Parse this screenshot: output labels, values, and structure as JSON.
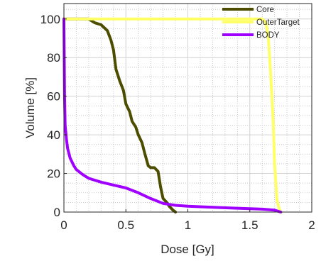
{
  "chart_data": {
    "type": "line",
    "title": "",
    "xlabel": "Dose [Gy]",
    "ylabel": "Volume [%]",
    "xlim": [
      0,
      2.0
    ],
    "ylim": [
      0,
      108
    ],
    "x_ticks": [
      0,
      0.5,
      1,
      1.5,
      2
    ],
    "x_tick_labels": [
      "0",
      "0.5",
      "1",
      "1.5",
      "2"
    ],
    "y_ticks": [
      0,
      20,
      40,
      60,
      80,
      100
    ],
    "y_tick_labels": [
      "0",
      "20",
      "40",
      "60",
      "80",
      "100"
    ],
    "grid": true,
    "minor_grid": true,
    "legend_position": "top-right",
    "series": [
      {
        "name": "Core",
        "color": "#4d4d00",
        "x": [
          0,
          0.2,
          0.25,
          0.3,
          0.35,
          0.38,
          0.4,
          0.42,
          0.45,
          0.48,
          0.5,
          0.53,
          0.55,
          0.58,
          0.6,
          0.63,
          0.65,
          0.68,
          0.7,
          0.73,
          0.76,
          0.78,
          0.8,
          0.83,
          0.85,
          0.88,
          0.9
        ],
        "y": [
          100,
          100,
          98,
          97,
          94,
          89,
          84,
          74,
          68,
          63,
          56,
          52,
          47,
          44,
          40,
          36,
          31,
          24,
          23,
          23,
          21,
          13,
          7,
          5,
          3,
          1,
          0
        ]
      },
      {
        "name": "OuterTarget",
        "color": "#ffff66",
        "x": [
          0,
          1.5,
          1.6,
          1.63,
          1.65,
          1.67,
          1.69,
          1.7,
          1.72,
          1.74,
          1.75
        ],
        "y": [
          100,
          100,
          100,
          98,
          90,
          70,
          45,
          25,
          6,
          1,
          0
        ]
      },
      {
        "name": "BODY",
        "color": "#a000ff",
        "x": [
          0,
          0.005,
          0.01,
          0.02,
          0.03,
          0.05,
          0.08,
          0.1,
          0.15,
          0.2,
          0.3,
          0.4,
          0.5,
          0.6,
          0.7,
          0.8,
          0.9,
          1.0,
          1.2,
          1.4,
          1.6,
          1.7,
          1.75
        ],
        "y": [
          100,
          60,
          45,
          38,
          33,
          28,
          24,
          22,
          19.5,
          17.5,
          15.5,
          14,
          12.5,
          10,
          7,
          4.5,
          3.5,
          3,
          2.5,
          2,
          1.5,
          1,
          0
        ]
      }
    ]
  }
}
